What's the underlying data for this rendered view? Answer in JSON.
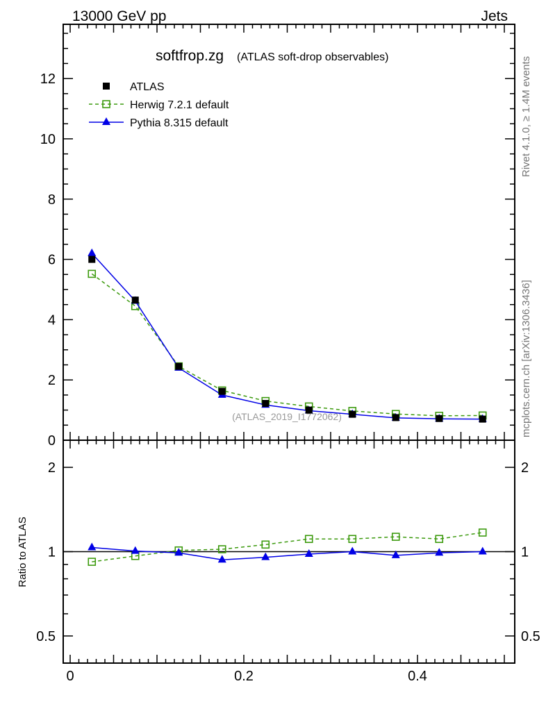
{
  "header": {
    "left": "13000 GeV pp",
    "right": "Jets"
  },
  "side": {
    "rivet": "Rivet 4.1.0, ≥ 1.4M events",
    "mcplots": "mcplots.cern.ch [arXiv:1306.3436]"
  },
  "chart_data": [
    {
      "type": "line",
      "title": "softfrop.zg",
      "subtitle": "(ATLAS soft-drop observables)",
      "watermark": "(ATLAS_2019_I1772062)",
      "xlim": [
        -0.008,
        0.512
      ],
      "ylim": [
        0,
        13.8
      ],
      "yticks": [
        "0",
        "2",
        "4",
        "6",
        "8",
        "10",
        "12"
      ],
      "ytick_values": [
        0,
        2,
        4,
        6,
        8,
        10,
        12
      ],
      "x": [
        0.025,
        0.075,
        0.125,
        0.175,
        0.225,
        0.275,
        0.325,
        0.375,
        0.425,
        0.475
      ],
      "legend": {
        "placement": "top-left"
      },
      "series": [
        {
          "name": "ATLAS",
          "color": "#000000",
          "marker": "square-filled",
          "values": [
            6.0,
            4.65,
            2.45,
            1.62,
            1.22,
            1.0,
            0.86,
            0.75,
            0.72,
            0.7
          ]
        },
        {
          "name": "Herwig 7.2.1 default",
          "color": "#3c9a0e",
          "marker": "square-open",
          "dashed": true,
          "values": [
            5.52,
            4.45,
            2.45,
            1.65,
            1.3,
            1.12,
            0.97,
            0.87,
            0.81,
            0.82
          ]
        },
        {
          "name": "Pythia 8.315 default",
          "color": "#0000e6",
          "marker": "triangle",
          "values": [
            6.2,
            4.62,
            2.4,
            1.5,
            1.17,
            0.98,
            0.86,
            0.74,
            0.71,
            0.7
          ]
        }
      ]
    },
    {
      "type": "line",
      "ylabel": "Ratio to ATLAS",
      "yscale": "log",
      "ylim": [
        0.4,
        2.5
      ],
      "yticks": [
        "0.5",
        "1",
        "2"
      ],
      "ytick_values": [
        0.5,
        1,
        2
      ],
      "xticks": [
        "0",
        "0.2",
        "0.4"
      ],
      "xtick_values": [
        0,
        0.2,
        0.4
      ],
      "series": [
        {
          "name": "Herwig 7.2.1 default",
          "values": [
            0.92,
            0.965,
            1.01,
            1.02,
            1.06,
            1.11,
            1.11,
            1.13,
            1.11,
            1.17
          ]
        },
        {
          "name": "Pythia 8.315 default",
          "values": [
            1.035,
            1.005,
            0.99,
            0.935,
            0.955,
            0.98,
            1.0,
            0.97,
            0.99,
            1.0
          ]
        }
      ]
    }
  ]
}
